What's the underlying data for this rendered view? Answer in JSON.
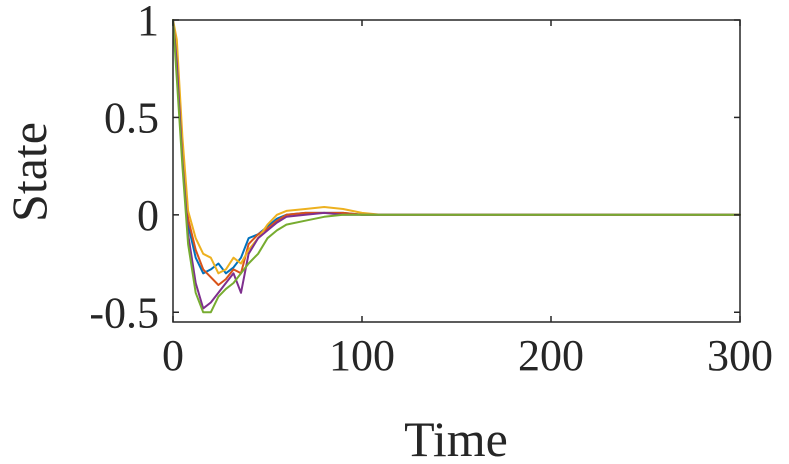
{
  "chart_data": {
    "type": "line",
    "title": "",
    "xlabel": "Time",
    "ylabel": "State",
    "xlim": [
      0,
      300
    ],
    "ylim": [
      -0.55,
      1
    ],
    "xticks": [
      0,
      100,
      200,
      300
    ],
    "xtick_labels": [
      "0",
      "100",
      "200",
      "300"
    ],
    "yticks": [
      -0.5,
      0,
      0.5,
      1
    ],
    "ytick_labels": [
      "-0.5",
      "0",
      "0.5",
      "1"
    ],
    "grid": false,
    "legend": "none",
    "x": [
      0,
      2,
      5,
      8,
      12,
      16,
      20,
      24,
      28,
      32,
      36,
      40,
      45,
      50,
      55,
      60,
      70,
      80,
      90,
      100,
      110,
      120,
      150,
      200,
      250,
      300
    ],
    "series": [
      {
        "color": "#0072BD",
        "values": [
          1,
          0.75,
          0.3,
          -0.05,
          -0.22,
          -0.3,
          -0.28,
          -0.25,
          -0.3,
          -0.27,
          -0.22,
          -0.12,
          -0.1,
          -0.06,
          -0.02,
          0.0,
          0.01,
          0.01,
          0.01,
          0.0,
          0.0,
          0.0,
          0.0,
          0.0,
          0.0,
          0.0
        ]
      },
      {
        "color": "#D95319",
        "values": [
          1,
          0.82,
          0.35,
          -0.02,
          -0.18,
          -0.28,
          -0.32,
          -0.36,
          -0.33,
          -0.28,
          -0.3,
          -0.15,
          -0.1,
          -0.07,
          -0.03,
          0.0,
          0.01,
          0.01,
          0.01,
          0.0,
          0.0,
          0.0,
          0.0,
          0.0,
          0.0,
          0.0
        ]
      },
      {
        "color": "#EDB120",
        "values": [
          1,
          0.9,
          0.4,
          0.02,
          -0.12,
          -0.2,
          -0.22,
          -0.3,
          -0.28,
          -0.22,
          -0.25,
          -0.18,
          -0.12,
          -0.05,
          0.0,
          0.02,
          0.03,
          0.04,
          0.03,
          0.01,
          0.0,
          0.0,
          0.0,
          0.0,
          0.0,
          0.0
        ]
      },
      {
        "color": "#7E2F8E",
        "values": [
          1,
          0.78,
          0.28,
          -0.1,
          -0.35,
          -0.48,
          -0.45,
          -0.4,
          -0.35,
          -0.3,
          -0.4,
          -0.2,
          -0.12,
          -0.08,
          -0.04,
          -0.01,
          0.0,
          0.01,
          0.0,
          0.0,
          0.0,
          0.0,
          0.0,
          0.0,
          0.0,
          0.0
        ]
      },
      {
        "color": "#77AC30",
        "values": [
          1,
          0.7,
          0.25,
          -0.15,
          -0.4,
          -0.5,
          -0.5,
          -0.42,
          -0.38,
          -0.35,
          -0.3,
          -0.25,
          -0.2,
          -0.12,
          -0.08,
          -0.05,
          -0.03,
          -0.01,
          0.0,
          0.0,
          0.0,
          0.0,
          0.0,
          0.0,
          0.0,
          0.0
        ]
      }
    ]
  }
}
